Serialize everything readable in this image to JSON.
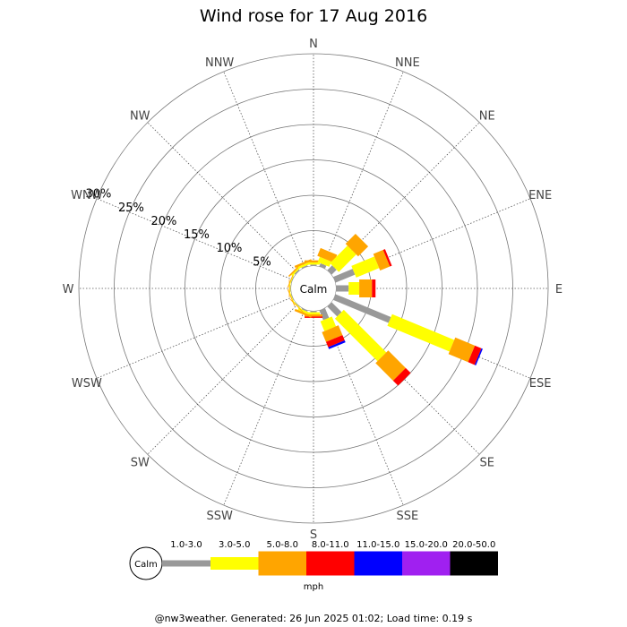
{
  "chart_data": {
    "type": "wind-rose",
    "title": "Wind rose for 17 Aug 2016",
    "center_label": "Calm",
    "directions": [
      "N",
      "NNE",
      "NE",
      "ENE",
      "E",
      "ESE",
      "SE",
      "SSE",
      "S",
      "SSW",
      "SW",
      "WSW",
      "W",
      "WNW",
      "NW",
      "NNW"
    ],
    "radial_ticks": [
      "5%",
      "10%",
      "15%",
      "20%",
      "25%",
      "30%"
    ],
    "radial_tick_values": [
      5,
      10,
      15,
      20,
      25,
      30
    ],
    "radial_max": 30,
    "speed_bins": [
      "1.0-3.0",
      "3.0-5.0",
      "5.0-8.0",
      "8.0-11.0",
      "11.0-15.0",
      "15.0-20.0",
      "20.0-50.0"
    ],
    "bin_colors": [
      "#999999",
      "#ffff00",
      "#ffa500",
      "#ff0000",
      "#0000ff",
      "#a020f0",
      "#000000"
    ],
    "units": "mph",
    "series": [
      {
        "direction": "N",
        "values": [
          0.2,
          0.3,
          0.3,
          0,
          0,
          0,
          0
        ]
      },
      {
        "direction": "NNE",
        "values": [
          0.5,
          0.8,
          1.2,
          0,
          0,
          0,
          0
        ]
      },
      {
        "direction": "NE",
        "values": [
          1.0,
          3.5,
          2.0,
          0,
          0,
          0,
          0
        ]
      },
      {
        "direction": "ENE",
        "values": [
          3.0,
          3.5,
          1.5,
          0.3,
          0,
          0,
          0
        ]
      },
      {
        "direction": "E",
        "values": [
          1.8,
          1.5,
          1.8,
          0.5,
          0,
          0,
          0
        ]
      },
      {
        "direction": "ESE",
        "values": [
          8.5,
          9.5,
          3.0,
          1.0,
          0.2,
          0,
          0
        ]
      },
      {
        "direction": "SE",
        "values": [
          2.0,
          8.5,
          3.5,
          1.0,
          0,
          0,
          0
        ]
      },
      {
        "direction": "SSE",
        "values": [
          1.5,
          1.5,
          1.5,
          0.8,
          0.3,
          0,
          0
        ]
      },
      {
        "direction": "S",
        "values": [
          0.2,
          0.3,
          0.3,
          0.2,
          0,
          0,
          0
        ]
      },
      {
        "direction": "SSW",
        "values": [
          0.2,
          0.3,
          0.3,
          0,
          0,
          0,
          0
        ]
      },
      {
        "direction": "SW",
        "values": [
          0.1,
          0.1,
          0.1,
          0,
          0,
          0,
          0
        ]
      },
      {
        "direction": "WSW",
        "values": [
          0.1,
          0.1,
          0.1,
          0,
          0,
          0,
          0
        ]
      },
      {
        "direction": "W",
        "values": [
          0.1,
          0.1,
          0.1,
          0,
          0,
          0,
          0
        ]
      },
      {
        "direction": "WNW",
        "values": [
          0.1,
          0.1,
          0.1,
          0,
          0,
          0,
          0
        ]
      },
      {
        "direction": "NW",
        "values": [
          0.2,
          0.2,
          0.2,
          0,
          0,
          0,
          0
        ]
      },
      {
        "direction": "NNW",
        "values": [
          0.2,
          0.3,
          0.3,
          0,
          0,
          0,
          0
        ]
      }
    ],
    "grid": true
  },
  "footer": "@nw3weather. Generated: 26 Jun 2025 01:02; Load time: 0.19 s"
}
